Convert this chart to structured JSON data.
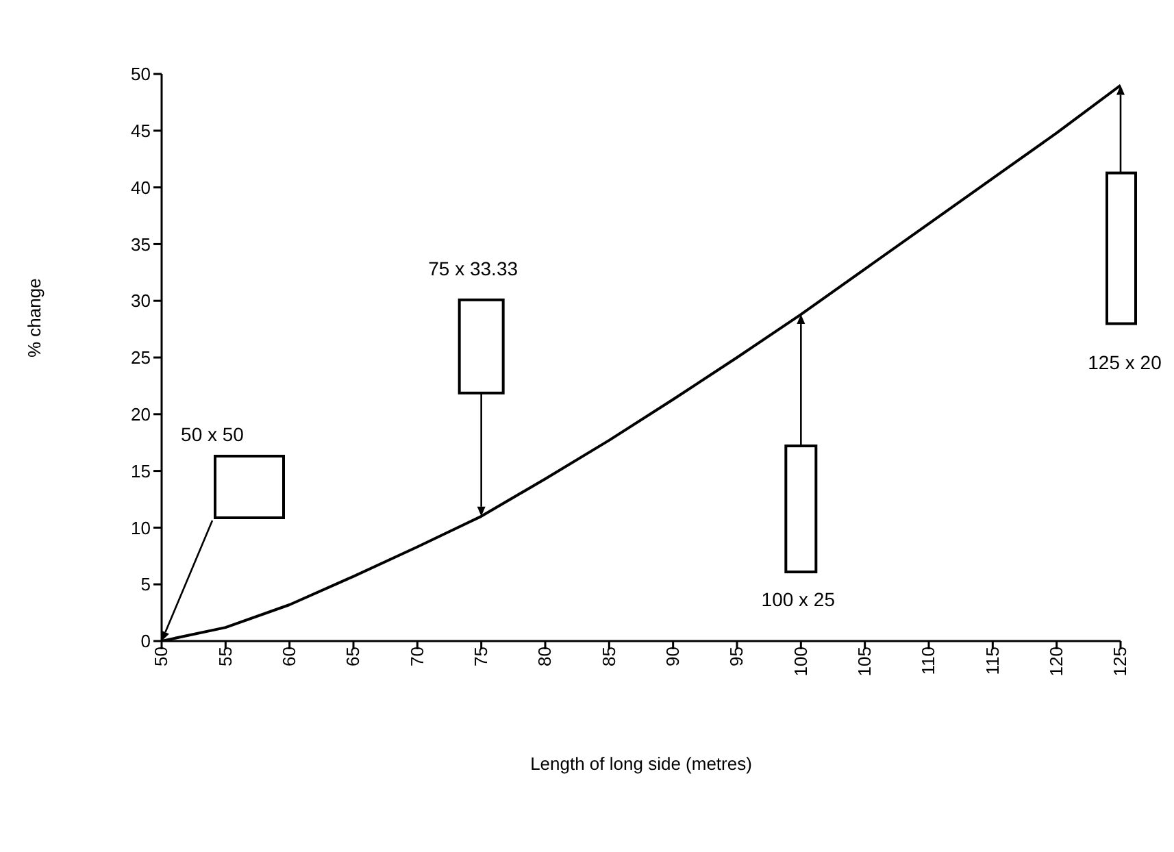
{
  "chart_data": {
    "type": "line",
    "xlabel": "Length of long side (metres)",
    "ylabel": "% change",
    "x": [
      50,
      55,
      60,
      65,
      70,
      75,
      80,
      85,
      90,
      95,
      100,
      105,
      110,
      115,
      120,
      125
    ],
    "values": [
      0,
      1.2,
      3.2,
      5.7,
      8.3,
      11,
      14.3,
      17.7,
      21.3,
      25,
      28.8,
      32.8,
      36.8,
      40.8,
      44.8,
      49
    ],
    "color": "#000000",
    "xlim": [
      50,
      125
    ],
    "xticks": [
      50,
      55,
      60,
      65,
      70,
      75,
      80,
      85,
      90,
      95,
      100,
      105,
      110,
      115,
      120,
      125
    ],
    "ylim": [
      0,
      50
    ],
    "yticks": [
      0,
      5,
      10,
      15,
      20,
      25,
      30,
      35,
      40,
      45,
      50
    ],
    "grid": false,
    "legend": false,
    "marker": "none",
    "line_style": "solid",
    "annotations": [
      "50 x 50",
      "75 x 33.33",
      "100 x 25",
      "125 x 20"
    ]
  }
}
